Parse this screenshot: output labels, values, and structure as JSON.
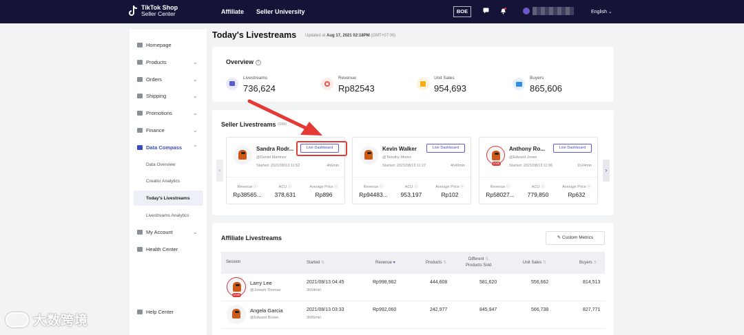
{
  "header": {
    "brand_line1": "TikTok Shop",
    "brand_line2": "Seller Center",
    "nav": [
      "Affiliate",
      "Seller University"
    ],
    "env_badge": "BOE",
    "language": "English"
  },
  "sidebar": {
    "items": [
      {
        "label": "Homepage",
        "icon": "home-icon"
      },
      {
        "label": "Products",
        "icon": "box-icon",
        "chevron": "down"
      },
      {
        "label": "Orders",
        "icon": "orders-icon",
        "chevron": "down"
      },
      {
        "label": "Shipping",
        "icon": "truck-icon",
        "chevron": "down"
      },
      {
        "label": "Promotions",
        "icon": "megaphone-icon",
        "chevron": "down"
      },
      {
        "label": "Finance",
        "icon": "card-icon",
        "chevron": "down"
      },
      {
        "label": "Data Compass",
        "icon": "chart-icon",
        "chevron": "up"
      }
    ],
    "sub_items": [
      "Data Overview",
      "Creator Analytics",
      "Today's Livestreams",
      "Livestreams Analytics"
    ],
    "bottom_items": [
      {
        "label": "My Account",
        "icon": "user-icon",
        "chevron": "down"
      },
      {
        "label": "Health Center",
        "icon": "heart-icon"
      }
    ],
    "help": "Help Center"
  },
  "page": {
    "title": "Today's Livestreams",
    "updated_prefix": "Updated at",
    "updated_time": "Aug 17, 2021 02:18PM",
    "updated_tz": "(GMT+07:00)"
  },
  "overview": {
    "title": "Overview",
    "stats": [
      {
        "label": "Livestreams",
        "value": "736,624",
        "color": "#5b5bd6"
      },
      {
        "label": "Revenue",
        "value": "Rp82543",
        "color": "#e2574c"
      },
      {
        "label": "Unit Sales",
        "value": "954,693",
        "color": "#f2b01e"
      },
      {
        "label": "Buyers",
        "value": "865,606",
        "color": "#2f8de4"
      }
    ]
  },
  "seller": {
    "title": "Seller Livestreams",
    "count": "(100)",
    "button": "Live Dashboard",
    "metric_labels": [
      "Revenue",
      "ACU",
      "Average Price"
    ],
    "cards": [
      {
        "name": "Sandra Rodr...",
        "handle": "@Daniel Martinez",
        "started": "Started: 2021/08/13 11:52",
        "duration": "4h6min",
        "revenue": "Rp38565...",
        "acu": "378,631",
        "avg": "Rp896",
        "live": false
      },
      {
        "name": "Kevin Walker",
        "handle": "@Timothy Moore",
        "started": "Started: 2021/08/13 11:27",
        "duration": "4h49min",
        "revenue": "Rp94483...",
        "acu": "953,197",
        "avg": "Rp102",
        "live": false
      },
      {
        "name": "Anthony Ro...",
        "handle": "@Edward Jones",
        "started": "Started: 2021/08/13 11:06",
        "duration": "1h24min",
        "revenue": "Rp58027...",
        "acu": "779,850",
        "avg": "Rp632",
        "live": true
      }
    ]
  },
  "affiliate": {
    "title": "Affiliate Livestreams",
    "custom_metrics": "Custom Metrics",
    "columns": [
      "Session",
      "Started",
      "Revenue",
      "Products",
      "Different",
      "Products Sold",
      "Unit Sales",
      "Buyers"
    ],
    "rows": [
      {
        "name": "Larry Lee",
        "handle": "@Joseph Thomas",
        "started": "2021/08/13 04:45",
        "duration": "3h54min",
        "revenue": "Rp998,982",
        "products": "444,608",
        "different": "581,620",
        "units": "556,662",
        "buyers": "814,513",
        "live": true
      },
      {
        "name": "Angela Garcia",
        "handle": "@Edward Brown",
        "started": "2021/08/13 03:33",
        "duration": "3h56min",
        "revenue": "Rp992,060",
        "products": "242,977",
        "different": "845,947",
        "units": "566,738",
        "buyers": "827,771",
        "live": false
      }
    ]
  },
  "live_tag": "LIVE",
  "watermark": "大数跨境"
}
